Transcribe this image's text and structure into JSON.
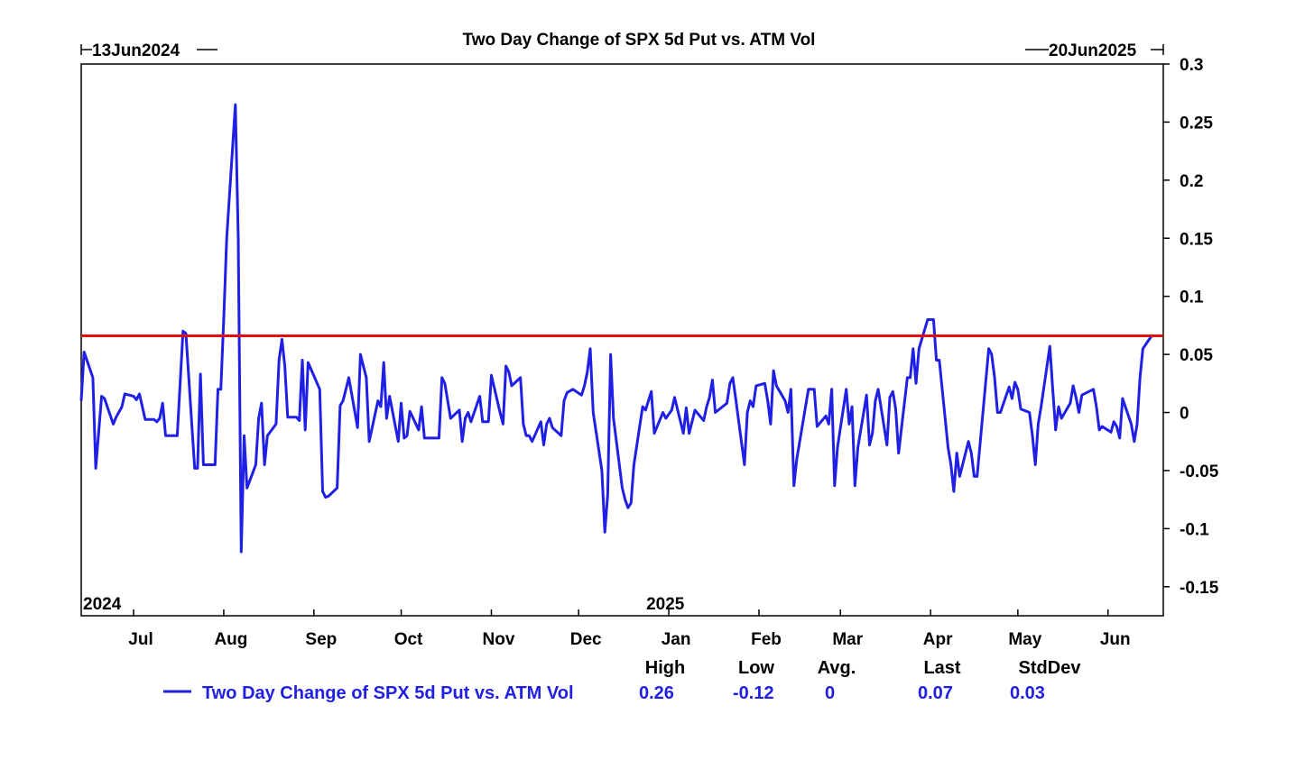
{
  "chart_data": {
    "type": "line",
    "title": "Two Day Change of SPX 5d Put vs. ATM Vol",
    "start_label": "13Jun2024",
    "end_label": "20Jun2025",
    "year_labels": [
      {
        "date": "2024-06-13",
        "label": "2024"
      },
      {
        "date": "2025-01-01",
        "label": "2025"
      }
    ],
    "x_range": [
      "2024-06-13",
      "2025-06-20"
    ],
    "x_ticks": [
      {
        "date": "2024-07-01",
        "label": "Jul"
      },
      {
        "date": "2024-08-01",
        "label": "Aug"
      },
      {
        "date": "2024-09-01",
        "label": "Sep"
      },
      {
        "date": "2024-10-01",
        "label": "Oct"
      },
      {
        "date": "2024-11-01",
        "label": "Nov"
      },
      {
        "date": "2024-12-01",
        "label": "Dec"
      },
      {
        "date": "2025-01-01",
        "label": "Jan"
      },
      {
        "date": "2025-02-01",
        "label": "Feb"
      },
      {
        "date": "2025-03-01",
        "label": "Mar"
      },
      {
        "date": "2025-04-01",
        "label": "Apr"
      },
      {
        "date": "2025-05-01",
        "label": "May"
      },
      {
        "date": "2025-06-01",
        "label": "Jun"
      }
    ],
    "ylim": [
      -0.175,
      0.3
    ],
    "y_ticks": [
      {
        "value": 0.3,
        "label": "0.3"
      },
      {
        "value": 0.25,
        "label": "0.25"
      },
      {
        "value": 0.2,
        "label": "0.2"
      },
      {
        "value": 0.15,
        "label": "0.15"
      },
      {
        "value": 0.1,
        "label": "0.1"
      },
      {
        "value": 0.05,
        "label": "0.05"
      },
      {
        "value": 0,
        "label": "0"
      },
      {
        "value": -0.05,
        "label": "-0.05"
      },
      {
        "value": -0.1,
        "label": "-0.1"
      },
      {
        "value": -0.15,
        "label": "-0.15"
      }
    ],
    "y_axis_side": "right",
    "grid": false,
    "reference_line": {
      "value": 0.066,
      "color": "#e01010"
    },
    "legend_position": "bottom",
    "series": [
      {
        "name": "Two Day Change of SPX 5d Put vs. ATM Vol",
        "color": "#1f1fe6",
        "stats_headers": [
          "High",
          "Low",
          "Avg.",
          "Last",
          "StdDev"
        ],
        "stats_values": [
          "0.26",
          "-0.12",
          "0",
          "0.07",
          "0.03"
        ],
        "points": [
          [
            "2024-06-13",
            0.01
          ],
          [
            "2024-06-14",
            0.052
          ],
          [
            "2024-06-17",
            0.03
          ],
          [
            "2024-06-18",
            -0.048
          ],
          [
            "2024-06-20",
            0.014
          ],
          [
            "2024-06-21",
            0.012
          ],
          [
            "2024-06-24",
            -0.01
          ],
          [
            "2024-06-25",
            -0.004
          ],
          [
            "2024-06-27",
            0.005
          ],
          [
            "2024-06-28",
            0.016
          ],
          [
            "2024-07-01",
            0.014
          ],
          [
            "2024-07-02",
            0.011
          ],
          [
            "2024-07-03",
            0.016
          ],
          [
            "2024-07-05",
            -0.006
          ],
          [
            "2024-07-08",
            -0.006
          ],
          [
            "2024-07-09",
            -0.008
          ],
          [
            "2024-07-10",
            -0.005
          ],
          [
            "2024-07-11",
            0.008
          ],
          [
            "2024-07-12",
            -0.02
          ],
          [
            "2024-07-15",
            -0.02
          ],
          [
            "2024-07-16",
            -0.02
          ],
          [
            "2024-07-18",
            0.07
          ],
          [
            "2024-07-19",
            0.068
          ],
          [
            "2024-07-22",
            -0.048
          ],
          [
            "2024-07-23",
            -0.048
          ],
          [
            "2024-07-24",
            0.033
          ],
          [
            "2024-07-25",
            -0.045
          ],
          [
            "2024-07-26",
            -0.045
          ],
          [
            "2024-07-29",
            -0.045
          ],
          [
            "2024-07-30",
            0.02
          ],
          [
            "2024-07-31",
            0.02
          ],
          [
            "2024-08-01",
            0.08
          ],
          [
            "2024-08-02",
            0.15
          ],
          [
            "2024-08-05",
            0.265
          ],
          [
            "2024-08-06",
            0.15
          ],
          [
            "2024-08-07",
            -0.12
          ],
          [
            "2024-08-08",
            -0.02
          ],
          [
            "2024-08-09",
            -0.065
          ],
          [
            "2024-08-12",
            -0.045
          ],
          [
            "2024-08-13",
            -0.005
          ],
          [
            "2024-08-14",
            0.008
          ],
          [
            "2024-08-15",
            -0.045
          ],
          [
            "2024-08-16",
            -0.02
          ],
          [
            "2024-08-19",
            -0.01
          ],
          [
            "2024-08-20",
            0.045
          ],
          [
            "2024-08-21",
            0.063
          ],
          [
            "2024-08-22",
            0.04
          ],
          [
            "2024-08-23",
            -0.004
          ],
          [
            "2024-08-26",
            -0.004
          ],
          [
            "2024-08-27",
            -0.007
          ],
          [
            "2024-08-28",
            0.045
          ],
          [
            "2024-08-29",
            -0.015
          ],
          [
            "2024-08-30",
            0.043
          ],
          [
            "2024-09-03",
            0.02
          ],
          [
            "2024-09-04",
            -0.068
          ],
          [
            "2024-09-05",
            -0.073
          ],
          [
            "2024-09-06",
            -0.072
          ],
          [
            "2024-09-09",
            -0.065
          ],
          [
            "2024-09-10",
            0.006
          ],
          [
            "2024-09-11",
            0.01
          ],
          [
            "2024-09-12",
            0.02
          ],
          [
            "2024-09-13",
            0.03
          ],
          [
            "2024-09-16",
            -0.013
          ],
          [
            "2024-09-17",
            0.05
          ],
          [
            "2024-09-18",
            0.04
          ],
          [
            "2024-09-19",
            0.03
          ],
          [
            "2024-09-20",
            -0.025
          ],
          [
            "2024-09-23",
            0.01
          ],
          [
            "2024-09-24",
            0.005
          ],
          [
            "2024-09-25",
            0.043
          ],
          [
            "2024-09-26",
            -0.005
          ],
          [
            "2024-09-27",
            0.014
          ],
          [
            "2024-09-30",
            -0.025
          ],
          [
            "2024-10-01",
            0.008
          ],
          [
            "2024-10-02",
            -0.022
          ],
          [
            "2024-10-03",
            -0.02
          ],
          [
            "2024-10-04",
            0.001
          ],
          [
            "2024-10-07",
            -0.015
          ],
          [
            "2024-10-08",
            0.005
          ],
          [
            "2024-10-09",
            -0.022
          ],
          [
            "2024-10-10",
            -0.022
          ],
          [
            "2024-10-11",
            -0.022
          ],
          [
            "2024-10-14",
            -0.022
          ],
          [
            "2024-10-15",
            0.03
          ],
          [
            "2024-10-16",
            0.025
          ],
          [
            "2024-10-17",
            0.01
          ],
          [
            "2024-10-18",
            -0.005
          ],
          [
            "2024-10-21",
            0.002
          ],
          [
            "2024-10-22",
            -0.025
          ],
          [
            "2024-10-23",
            -0.005
          ],
          [
            "2024-10-24",
            0.0
          ],
          [
            "2024-10-25",
            -0.008
          ],
          [
            "2024-10-28",
            0.014
          ],
          [
            "2024-10-29",
            -0.008
          ],
          [
            "2024-10-30",
            -0.008
          ],
          [
            "2024-10-31",
            -0.008
          ],
          [
            "2024-11-01",
            0.032
          ],
          [
            "2024-11-04",
            0.0
          ],
          [
            "2024-11-05",
            -0.01
          ],
          [
            "2024-11-06",
            0.04
          ],
          [
            "2024-11-07",
            0.035
          ],
          [
            "2024-11-08",
            0.023
          ],
          [
            "2024-11-11",
            0.03
          ],
          [
            "2024-11-12",
            -0.01
          ],
          [
            "2024-11-13",
            -0.02
          ],
          [
            "2024-11-14",
            -0.02
          ],
          [
            "2024-11-15",
            -0.025
          ],
          [
            "2024-11-18",
            -0.008
          ],
          [
            "2024-11-19",
            -0.028
          ],
          [
            "2024-11-20",
            -0.01
          ],
          [
            "2024-11-21",
            -0.005
          ],
          [
            "2024-11-22",
            -0.013
          ],
          [
            "2024-11-25",
            -0.02
          ],
          [
            "2024-11-26",
            0.01
          ],
          [
            "2024-11-27",
            0.017
          ],
          [
            "2024-11-29",
            0.02
          ],
          [
            "2024-12-02",
            0.015
          ],
          [
            "2024-12-03",
            0.023
          ],
          [
            "2024-12-04",
            0.035
          ],
          [
            "2024-12-05",
            0.055
          ],
          [
            "2024-12-06",
            0.0
          ],
          [
            "2024-12-09",
            -0.05
          ],
          [
            "2024-12-10",
            -0.103
          ],
          [
            "2024-12-11",
            -0.07
          ],
          [
            "2024-12-12",
            0.05
          ],
          [
            "2024-12-13",
            -0.005
          ],
          [
            "2024-12-16",
            -0.065
          ],
          [
            "2024-12-17",
            -0.075
          ],
          [
            "2024-12-18",
            -0.082
          ],
          [
            "2024-12-19",
            -0.078
          ],
          [
            "2024-12-20",
            -0.045
          ],
          [
            "2024-12-23",
            0.005
          ],
          [
            "2024-12-24",
            0.002
          ],
          [
            "2024-12-26",
            0.018
          ],
          [
            "2024-12-27",
            -0.018
          ],
          [
            "2024-12-30",
            0.0
          ],
          [
            "2024-12-31",
            -0.005
          ],
          [
            "2025-01-02",
            0.002
          ],
          [
            "2025-01-03",
            0.013
          ],
          [
            "2025-01-06",
            -0.018
          ],
          [
            "2025-01-07",
            0.004
          ],
          [
            "2025-01-08",
            -0.018
          ],
          [
            "2025-01-10",
            0.002
          ],
          [
            "2025-01-13",
            -0.007
          ],
          [
            "2025-01-14",
            0.005
          ],
          [
            "2025-01-15",
            0.013
          ],
          [
            "2025-01-16",
            0.028
          ],
          [
            "2025-01-17",
            0.0
          ],
          [
            "2025-01-21",
            0.008
          ],
          [
            "2025-01-22",
            0.025
          ],
          [
            "2025-01-23",
            0.03
          ],
          [
            "2025-01-24",
            0.012
          ],
          [
            "2025-01-27",
            -0.045
          ],
          [
            "2025-01-28",
            0.0
          ],
          [
            "2025-01-29",
            0.01
          ],
          [
            "2025-01-30",
            0.005
          ],
          [
            "2025-01-31",
            0.023
          ],
          [
            "2025-02-03",
            0.025
          ],
          [
            "2025-02-04",
            0.01
          ],
          [
            "2025-02-05",
            -0.01
          ],
          [
            "2025-02-06",
            0.036
          ],
          [
            "2025-02-07",
            0.023
          ],
          [
            "2025-02-10",
            0.01
          ],
          [
            "2025-02-11",
            0.0
          ],
          [
            "2025-02-12",
            0.02
          ],
          [
            "2025-02-13",
            -0.063
          ],
          [
            "2025-02-14",
            -0.04
          ],
          [
            "2025-02-18",
            0.02
          ],
          [
            "2025-02-19",
            0.02
          ],
          [
            "2025-02-20",
            0.02
          ],
          [
            "2025-02-21",
            -0.012
          ],
          [
            "2025-02-24",
            -0.003
          ],
          [
            "2025-02-25",
            -0.01
          ],
          [
            "2025-02-26",
            0.02
          ],
          [
            "2025-02-27",
            -0.063
          ],
          [
            "2025-02-28",
            -0.03
          ],
          [
            "2025-03-03",
            0.02
          ],
          [
            "2025-03-04",
            -0.01
          ],
          [
            "2025-03-05",
            0.005
          ],
          [
            "2025-03-06",
            -0.063
          ],
          [
            "2025-03-07",
            -0.03
          ],
          [
            "2025-03-10",
            0.015
          ],
          [
            "2025-03-11",
            -0.028
          ],
          [
            "2025-03-12",
            -0.018
          ],
          [
            "2025-03-13",
            0.01
          ],
          [
            "2025-03-14",
            0.02
          ],
          [
            "2025-03-17",
            -0.028
          ],
          [
            "2025-03-18",
            0.013
          ],
          [
            "2025-03-19",
            0.018
          ],
          [
            "2025-03-20",
            0.003
          ],
          [
            "2025-03-21",
            -0.035
          ],
          [
            "2025-03-24",
            0.03
          ],
          [
            "2025-03-25",
            0.03
          ],
          [
            "2025-03-26",
            0.055
          ],
          [
            "2025-03-27",
            0.025
          ],
          [
            "2025-03-28",
            0.055
          ],
          [
            "2025-03-31",
            0.08
          ],
          [
            "2025-04-01",
            0.08
          ],
          [
            "2025-04-02",
            0.08
          ],
          [
            "2025-04-03",
            0.045
          ],
          [
            "2025-04-04",
            0.045
          ],
          [
            "2025-04-07",
            -0.03
          ],
          [
            "2025-04-08",
            -0.045
          ],
          [
            "2025-04-09",
            -0.068
          ],
          [
            "2025-04-10",
            -0.035
          ],
          [
            "2025-04-11",
            -0.055
          ],
          [
            "2025-04-14",
            -0.025
          ],
          [
            "2025-04-15",
            -0.035
          ],
          [
            "2025-04-16",
            -0.055
          ],
          [
            "2025-04-17",
            -0.055
          ],
          [
            "2025-04-21",
            0.055
          ],
          [
            "2025-04-22",
            0.05
          ],
          [
            "2025-04-23",
            0.03
          ],
          [
            "2025-04-24",
            0.0
          ],
          [
            "2025-04-25",
            0.0
          ],
          [
            "2025-04-28",
            0.022
          ],
          [
            "2025-04-29",
            0.012
          ],
          [
            "2025-04-30",
            0.026
          ],
          [
            "2025-05-01",
            0.02
          ],
          [
            "2025-05-02",
            0.003
          ],
          [
            "2025-05-05",
            0.0
          ],
          [
            "2025-05-06",
            -0.02
          ],
          [
            "2025-05-07",
            -0.045
          ],
          [
            "2025-05-08",
            -0.01
          ],
          [
            "2025-05-09",
            0.005
          ],
          [
            "2025-05-12",
            0.057
          ],
          [
            "2025-05-13",
            0.02
          ],
          [
            "2025-05-14",
            -0.015
          ],
          [
            "2025-05-15",
            0.005
          ],
          [
            "2025-05-16",
            -0.005
          ],
          [
            "2025-05-19",
            0.008
          ],
          [
            "2025-05-20",
            0.023
          ],
          [
            "2025-05-21",
            0.013
          ],
          [
            "2025-05-22",
            0.0
          ],
          [
            "2025-05-23",
            0.015
          ],
          [
            "2025-05-27",
            0.02
          ],
          [
            "2025-05-28",
            0.005
          ],
          [
            "2025-05-29",
            -0.015
          ],
          [
            "2025-05-30",
            -0.012
          ],
          [
            "2025-06-02",
            -0.017
          ],
          [
            "2025-06-03",
            -0.008
          ],
          [
            "2025-06-04",
            -0.012
          ],
          [
            "2025-06-05",
            -0.022
          ],
          [
            "2025-06-06",
            0.012
          ],
          [
            "2025-06-09",
            -0.01
          ],
          [
            "2025-06-10",
            -0.025
          ],
          [
            "2025-06-11",
            -0.01
          ],
          [
            "2025-06-12",
            0.03
          ],
          [
            "2025-06-13",
            0.055
          ],
          [
            "2025-06-16",
            0.066
          ]
        ]
      }
    ]
  }
}
